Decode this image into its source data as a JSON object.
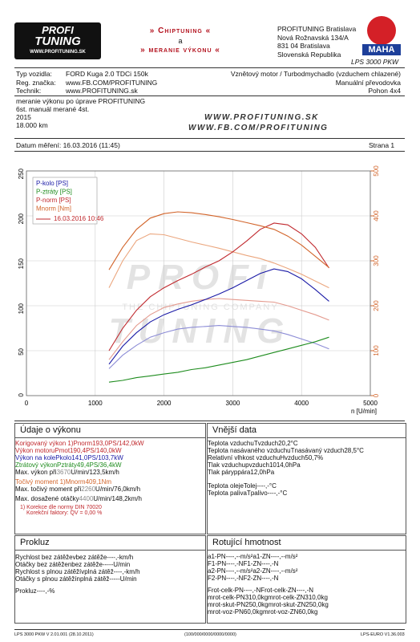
{
  "header": {
    "logo": [
      "PROFI",
      "TUNING",
      "WWW.PROFITUNING.SK"
    ],
    "title": [
      "» Chiptuning «",
      "a",
      "» meranie výkonu «"
    ],
    "address": [
      "PROFITUNING Bratislava",
      "Nová Rožnavská 134/A",
      "831 04 Bratislava",
      "Slovenská Republika"
    ],
    "maha": "MAHA",
    "device": "LPS 3000 PKW"
  },
  "vehicle": {
    "rows": [
      [
        "Typ vozidla:",
        "FORD Kuga 2.0 TDCi 150k"
      ],
      [
        "Reg. značka:",
        "www.FB.COM/PROFITUNING"
      ],
      [
        "Technik:",
        "www.PROFITUNING.sk"
      ]
    ],
    "right": [
      "Vznětový motor / Turbodmychadlo (vzduchem chlazené)",
      "Manuální převodovka",
      "Pohon 4x4"
    ]
  },
  "notes": {
    "lines": [
      "meranie výkonu po úprave PROFITUNING",
      "6st. manuál merané 4st.",
      "2015",
      "18.000 km"
    ],
    "urls": [
      "WWW.PROFITUNING.SK",
      "WWW.FB.COM/PROFITUNING"
    ]
  },
  "date_line": {
    "date": "Datum měření: 16.03.2016 (11:45)",
    "page": "Strana 1"
  },
  "chart_data": {
    "type": "line",
    "watermark": [
      "PROFI",
      "THE CHIPTUNING COMPANY",
      "TUNING"
    ],
    "x_label": "n [U/min]",
    "xlim": [
      0,
      5000
    ],
    "xticks": [
      0,
      1000,
      2000,
      3000,
      4000,
      5000
    ],
    "ylim": [
      0,
      250
    ],
    "yticks": [
      0,
      50,
      100,
      150,
      200,
      250
    ],
    "y2lim": [
      0,
      500
    ],
    "y2ticks": [
      0,
      100,
      200,
      300,
      400,
      500
    ],
    "y2_color": "#d2642a",
    "grid": true,
    "x": [
      1200,
      1400,
      1600,
      1800,
      2000,
      2200,
      2400,
      2600,
      2800,
      3000,
      3200,
      3400,
      3600,
      3800,
      4000,
      4200,
      4400
    ],
    "series": [
      {
        "name": "P-kolo [PS]",
        "color": "#1a1aa6",
        "values": [
          35,
          55,
          70,
          82,
          90,
          96,
          101,
          107,
          113,
          120,
          128,
          136,
          141,
          138,
          130,
          118,
          105
        ]
      },
      {
        "name": "P-ztráty [PS]",
        "color": "#1e8c1e",
        "values": [
          15,
          17,
          20,
          22,
          24,
          26,
          29,
          31,
          34,
          37,
          40,
          44,
          48,
          52,
          56,
          60,
          65
        ]
      },
      {
        "name": "P-norm [PS]",
        "color": "#c0282d",
        "values": [
          50,
          75,
          95,
          110,
          120,
          128,
          135,
          143,
          150,
          160,
          172,
          185,
          192,
          190,
          180,
          165,
          142
        ]
      },
      {
        "name": "Mnorm [Nm]",
        "color": "#d2642a",
        "axis": "y2",
        "values": [
          280,
          330,
          370,
          395,
          405,
          409,
          407,
          403,
          398,
          392,
          385,
          378,
          370,
          355,
          335,
          310,
          285
        ]
      }
    ],
    "comparison": {
      "label": "16.03.2016 10:46",
      "color": "#c0282d",
      "series": [
        {
          "color": "#8c8cd6",
          "values": [
            30,
            45,
            56,
            65,
            70,
            74,
            76,
            77,
            78,
            77,
            76,
            74,
            72,
            68,
            63,
            58,
            52
          ]
        },
        {
          "color": "#e49a8e",
          "values": [
            40,
            60,
            78,
            90,
            98,
            102,
            105,
            107,
            108,
            107,
            106,
            105,
            104,
            100,
            95,
            90,
            84
          ]
        },
        {
          "color": "#eba67e",
          "axis": "y2",
          "values": [
            240,
            300,
            345,
            360,
            358,
            350,
            342,
            335,
            328,
            320,
            312,
            305,
            295,
            283,
            270,
            255,
            240
          ]
        }
      ]
    }
  },
  "performance": {
    "title": "Údaje o výkonu",
    "rows": [
      {
        "label": "Korigovaný výkon 1)",
        "sym": "P",
        "sub": "norm",
        "v1": "193,0",
        "u1": "PS",
        "sep": "/",
        "v2": "142,0",
        "u2": "kW",
        "color": "#c0282d"
      },
      {
        "label": "Výkon motoru",
        "sym": "P",
        "sub": "mot",
        "v1": "190,4",
        "u1": "PS",
        "sep": "/",
        "v2": "140,0",
        "u2": "kW",
        "color": "#c0282d"
      },
      {
        "label": "Výkon na kole",
        "sym": "P",
        "sub": "kolo",
        "v1": "141,0",
        "u1": "PS",
        "sep": "/",
        "v2": "103,7",
        "u2": "kW",
        "color": "#1a1aa6"
      },
      {
        "label": "Ztrátový výkon",
        "sym": "P",
        "sub": "ztráty",
        "v1": "49,4",
        "u1": "PS",
        "sep": "/",
        "v2": "36,4",
        "u2": "kW",
        "color": "#1e8c1e"
      },
      {
        "label": "Max. výkon při",
        "v1": "3670",
        "u1": "U/min",
        "sep": "/",
        "v2": "123,5",
        "u2": "km/h"
      }
    ],
    "torque_rows": [
      {
        "label": "Točivý moment 1)",
        "sym": "M",
        "sub": "norm",
        "v1": "409,1",
        "u1": "Nm",
        "color": "#d2642a"
      },
      {
        "label": "Max. točivý moment při",
        "v1": "2260",
        "u1": "U/min",
        "sep": "/",
        "v2": "76,0",
        "u2": "km/h"
      }
    ],
    "max_rows": [
      {
        "label": "Max. dosažené otáčky",
        "v1": "4400",
        "u1": "U/min",
        "sep": "/",
        "v2": "148,2",
        "u2": "km/h"
      }
    ],
    "footnotes": [
      "1) Korekce dle normy DIN 70020",
      "Korekční faktory: QV =  0,00 %"
    ]
  },
  "ambient": {
    "title": "Vnější data",
    "rows": [
      {
        "label": "Teplota vzduchu",
        "sym": "T",
        "sub": "vzduch",
        "v1": "20,2",
        "u1": "°C"
      },
      {
        "label": "Teplota nasávaného vzduchu",
        "sym": "T",
        "sub": "nasávaný vzduch",
        "v1": "28,5",
        "u1": "°C"
      },
      {
        "label": "Relativní vlhkost vzduchu",
        "sym": "H",
        "sub": "vzduch",
        "v1": "50,7",
        "u1": "%"
      },
      {
        "label": "Tlak vzduchu",
        "sym": "p",
        "sub": "vzduch",
        "v1": "1014,0",
        "u1": "hPa"
      },
      {
        "label": "Tlak páry",
        "sym": "p",
        "sub": "pára",
        "v1": "12,0",
        "u1": "hPa"
      }
    ],
    "rows_b": [
      {
        "label": "Teplota oleje",
        "sym": "T",
        "sub": "olej",
        "v1": "----,-",
        "u1": "°C"
      },
      {
        "label": "Teplota paliva",
        "sym": "T",
        "sub": "palivo",
        "v1": "----,-",
        "u1": "°C"
      }
    ]
  },
  "slip": {
    "title": "Prokluz",
    "rows": [
      {
        "label": "Rychlost bez zátěže",
        "sym": "v",
        "sub": "bez zátěže",
        "v1": "----,-",
        "u1": "km/h"
      },
      {
        "label": "Otáčky bez zátěže",
        "sym": "n",
        "sub": "bez zátěže",
        "v1": "-----",
        "u1": "U/min"
      },
      {
        "label": "Rychlost s plnou zátěží",
        "sym": "v",
        "sub": "plná zátěž",
        "v1": "----,-",
        "u1": "km/h"
      },
      {
        "label": "Otáčky s plnou zátěží",
        "sym": "n",
        "sub": "plná zátěž",
        "v1": "-----",
        "u1": "U/min"
      }
    ],
    "rows_b": [
      {
        "label": "Prokluz",
        "v1": "----,-",
        "u1": "%"
      }
    ]
  },
  "rotating": {
    "title": "Rotující hmotnost",
    "rows": [
      {
        "sym": "a",
        "sub": "1-PN",
        "v1": "----,--",
        "u1": "m/s²",
        "sym2": "a",
        "sub2": "1-ZN",
        "v2": "----,--",
        "u2": "m/s²"
      },
      {
        "sym": "F",
        "sub": "1-PN",
        "v1": "----,-",
        "u1": "N",
        "sym2": "F",
        "sub2": "1-ZN",
        "v2": "----,-",
        "u2": "N"
      },
      {
        "sym": "a",
        "sub": "2-PN",
        "v1": "----,--",
        "u1": "m/s²",
        "sym2": "a",
        "sub2": "2-ZN",
        "v2": "----,--",
        "u2": "m/s²"
      },
      {
        "sym": "F",
        "sub": "2-PN",
        "v1": "----,-",
        "u1": "N",
        "sym2": "F",
        "sub2": "2-ZN",
        "v2": "----,-",
        "u2": "N"
      }
    ],
    "rows_b": [
      {
        "sym": "F",
        "sub": "rot-celk-PN",
        "v1": "----,-",
        "u1": "N",
        "sym2": "F",
        "sub2": "rot-celk-ZN",
        "v2": "----,-",
        "u2": "N"
      },
      {
        "sym": "m",
        "sub": "rot-celk-PN",
        "v1": "310,0",
        "u1": "kg",
        "sym2": "m",
        "sub2": "rot-celk-ZN",
        "v2": "310,0",
        "u2": "kg"
      },
      {
        "sym": "m",
        "sub": "rot-skut-PN",
        "v1": "250,0",
        "u1": "kg",
        "sym2": "m",
        "sub2": "rot-skut-ZN",
        "v2": "250,0",
        "u2": "kg"
      },
      {
        "sym": "m",
        "sub": "rot-voz-PN",
        "v1": "60,0",
        "u1": "kg",
        "sym2": "m",
        "sub2": "rot-voz-ZN",
        "v2": "60,0",
        "u2": "kg"
      }
    ]
  },
  "footer": [
    "LPS 3000 PKW V 2.01.001 (28.10.2011)",
    "(100/000/0000/0000/0000)",
    "LPS-EURO V1.36.003"
  ]
}
